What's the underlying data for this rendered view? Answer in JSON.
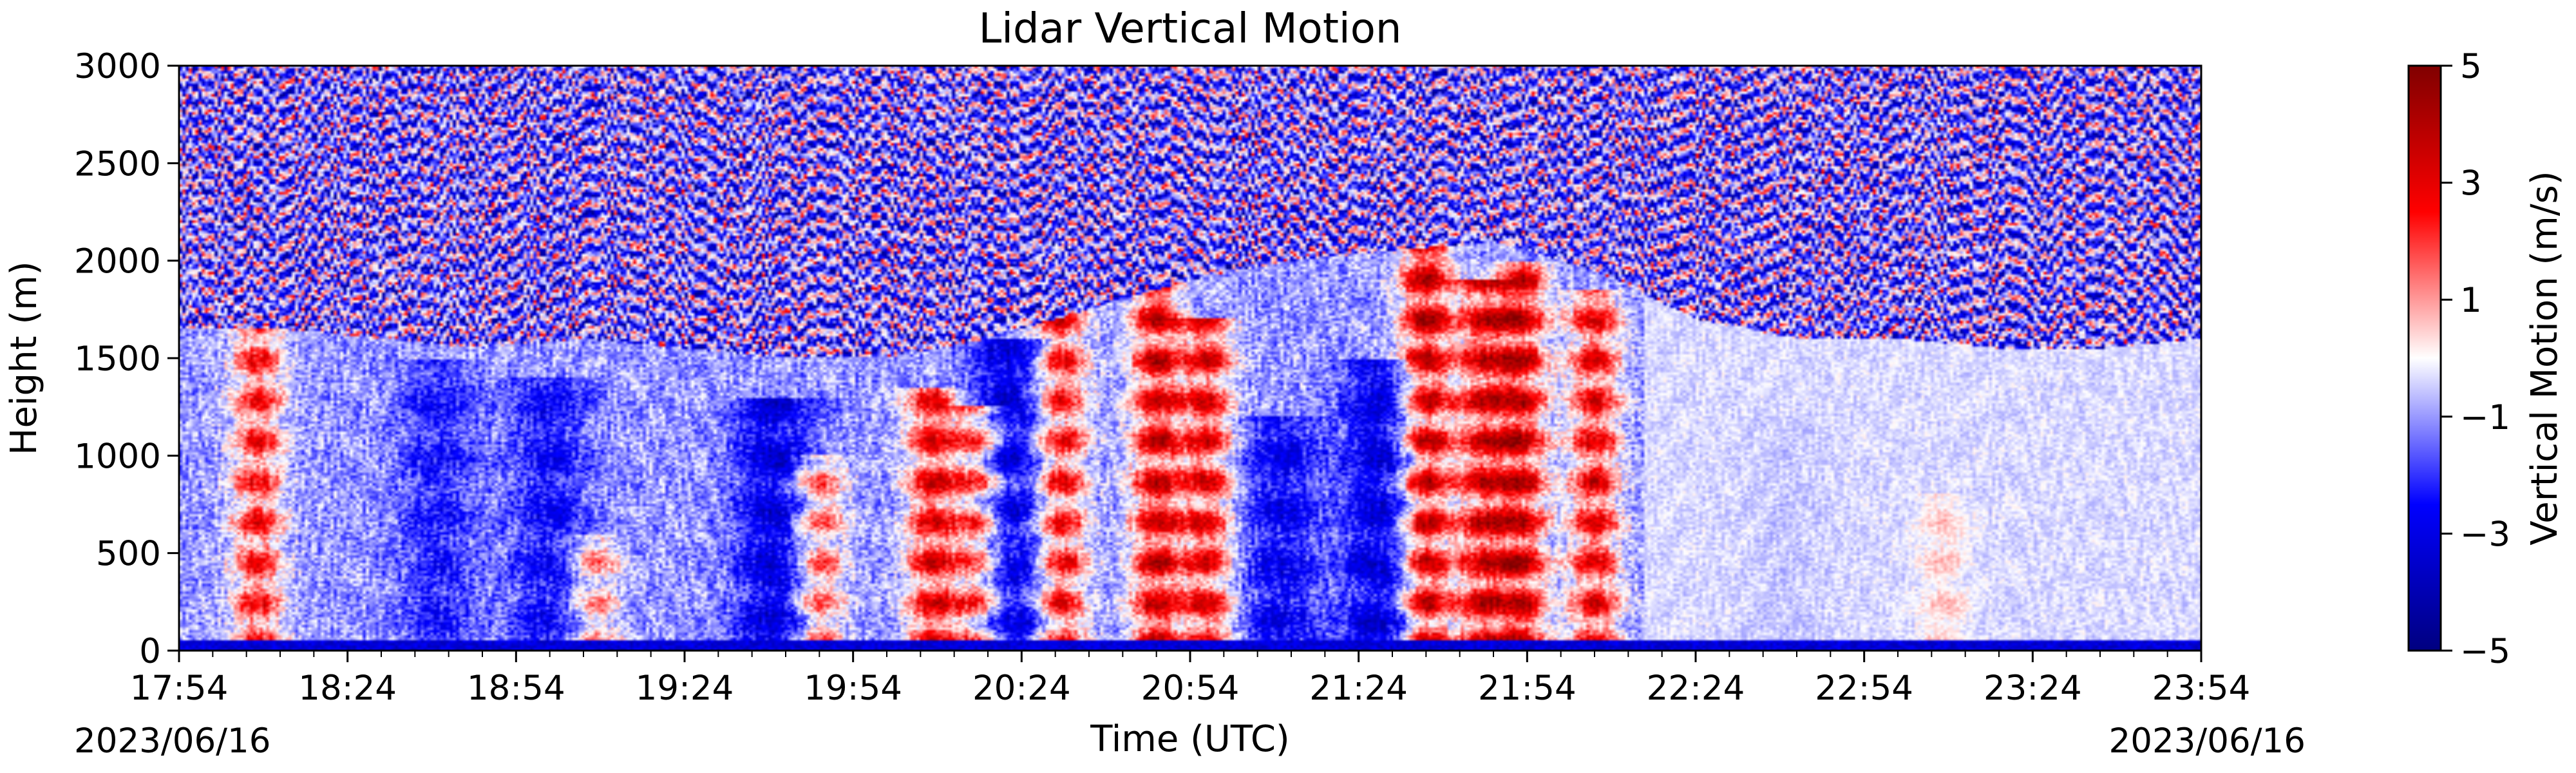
{
  "chart_data": {
    "type": "heatmap",
    "title": "Lidar Vertical Motion",
    "xlabel": "Time (UTC)",
    "ylabel": "Height (m)",
    "x_ticks": [
      "17:54",
      "18:24",
      "18:54",
      "19:24",
      "19:54",
      "20:24",
      "20:54",
      "21:24",
      "21:54",
      "22:24",
      "22:54",
      "23:24",
      "23:54"
    ],
    "x_range": [
      "17:54",
      "23:54"
    ],
    "date_start": "2023/06/16",
    "date_end": "2023/06/16",
    "y_ticks": [
      0,
      500,
      1000,
      1500,
      2000,
      2500,
      3000
    ],
    "ylim": [
      0,
      3000
    ],
    "colorbar": {
      "label": "Vertical Motion (m/s)",
      "ticks": [
        "5",
        "3",
        "1",
        "−1",
        "−3",
        "−5"
      ],
      "range": [
        -5,
        5
      ],
      "colormap": "seismic"
    },
    "boundary_layer_top_m": [
      1650,
      1650,
      1600,
      1550,
      1600,
      1550,
      1500,
      1500,
      1600,
      1750,
      1900,
      2000,
      2050,
      2100,
      1950,
      1700,
      1600,
      1600,
      1550,
      1550,
      1600
    ],
    "updraft_cells": [
      {
        "time": "18:08",
        "top_m": 1700,
        "peak_ms": 3.0
      },
      {
        "time": "19:08",
        "top_m": 600,
        "peak_ms": 1.8
      },
      {
        "time": "19:48",
        "top_m": 1000,
        "peak_ms": 2.5
      },
      {
        "time": "20:08",
        "top_m": 1350,
        "peak_ms": 3.5
      },
      {
        "time": "20:16",
        "top_m": 1250,
        "peak_ms": 3.0
      },
      {
        "time": "20:31",
        "top_m": 1800,
        "peak_ms": 3.5
      },
      {
        "time": "20:48",
        "top_m": 1900,
        "peak_ms": 4.0
      },
      {
        "time": "20:57",
        "top_m": 1700,
        "peak_ms": 3.5
      },
      {
        "time": "21:36",
        "top_m": 2100,
        "peak_ms": 4.5
      },
      {
        "time": "21:46",
        "top_m": 1900,
        "peak_ms": 3.5
      },
      {
        "time": "21:53",
        "top_m": 2000,
        "peak_ms": 4.0
      },
      {
        "time": "22:06",
        "top_m": 1850,
        "peak_ms": 3.5
      },
      {
        "time": "23:08",
        "top_m": 800,
        "peak_ms": 1.3
      }
    ],
    "downdraft_cells": [
      {
        "time": "18:40",
        "top_m": 1500,
        "peak_ms": -2.5
      },
      {
        "time": "19:00",
        "top_m": 1400,
        "peak_ms": -2.8
      },
      {
        "time": "19:40",
        "top_m": 1300,
        "peak_ms": -3.5
      },
      {
        "time": "20:22",
        "top_m": 1600,
        "peak_ms": -3.5
      },
      {
        "time": "21:10",
        "top_m": 1200,
        "peak_ms": -3.0
      },
      {
        "time": "21:28",
        "top_m": 1500,
        "peak_ms": -3.5
      },
      {
        "time": "22:40",
        "top_m": 1200,
        "peak_ms": -1.5
      }
    ],
    "near_surface_band_m": 50,
    "grid": false
  }
}
